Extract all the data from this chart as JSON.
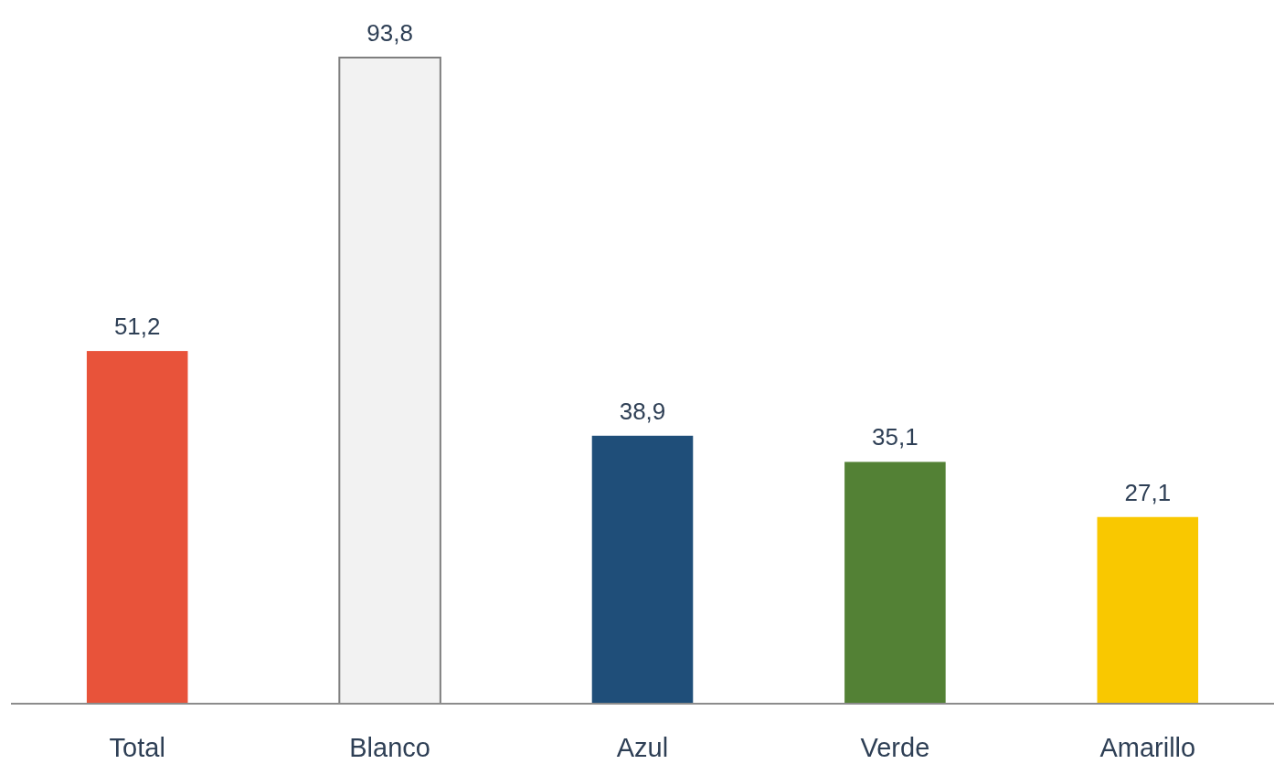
{
  "chart_data": {
    "type": "bar",
    "categories": [
      "Total",
      "Blanco",
      "Azul",
      "Verde",
      "Amarillo"
    ],
    "values": [
      51.2,
      93.8,
      38.9,
      35.1,
      27.1
    ],
    "value_labels": [
      "51,2",
      "93,8",
      "38,9",
      "35,1",
      "27,1"
    ],
    "colors": [
      "#e8533a",
      "#f2f2f2",
      "#1f4e79",
      "#538135",
      "#f9c800"
    ]
  }
}
